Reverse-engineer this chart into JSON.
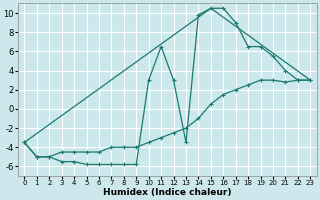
{
  "xlabel": "Humidex (Indice chaleur)",
  "ylabel": "",
  "background_color": "#cce8ec",
  "grid_color": "#ffffff",
  "line_color": "#1a7a6e",
  "xlim": [
    -0.5,
    23.5
  ],
  "ylim": [
    -7,
    11
  ],
  "xticks": [
    0,
    1,
    2,
    3,
    4,
    5,
    6,
    7,
    8,
    9,
    10,
    11,
    12,
    13,
    14,
    15,
    16,
    17,
    18,
    19,
    20,
    21,
    22,
    23
  ],
  "yticks": [
    -6,
    -4,
    -2,
    0,
    2,
    4,
    6,
    8,
    10
  ],
  "line1_x": [
    0,
    1,
    2,
    3,
    4,
    5,
    6,
    7,
    8,
    9,
    10,
    11,
    12,
    13,
    14,
    15,
    16,
    17,
    18,
    19,
    20,
    21,
    22,
    23
  ],
  "line1_y": [
    -3.5,
    -5.0,
    -5.0,
    -5.5,
    -5.5,
    -5.8,
    -5.8,
    -5.8,
    -5.8,
    -5.8,
    3.0,
    6.5,
    3.0,
    -3.5,
    9.8,
    10.5,
    10.5,
    9.0,
    6.5,
    6.5,
    5.5,
    4.0,
    3.0,
    3.0
  ],
  "line2_x": [
    0,
    1,
    2,
    3,
    4,
    5,
    6,
    7,
    8,
    9,
    10,
    11,
    12,
    13,
    14,
    15,
    16,
    17,
    18,
    19,
    20,
    21,
    22,
    23
  ],
  "line2_y": [
    -3.5,
    -5.0,
    -5.0,
    -4.5,
    -4.5,
    -4.5,
    -4.5,
    -4.0,
    -4.0,
    -4.0,
    -3.5,
    -3.0,
    -2.5,
    -2.0,
    -1.0,
    0.5,
    1.5,
    2.0,
    2.5,
    3.0,
    3.0,
    2.8,
    3.0,
    3.0
  ],
  "line3_x": [
    0,
    15,
    23
  ],
  "line3_y": [
    -3.5,
    10.5,
    3.0
  ]
}
